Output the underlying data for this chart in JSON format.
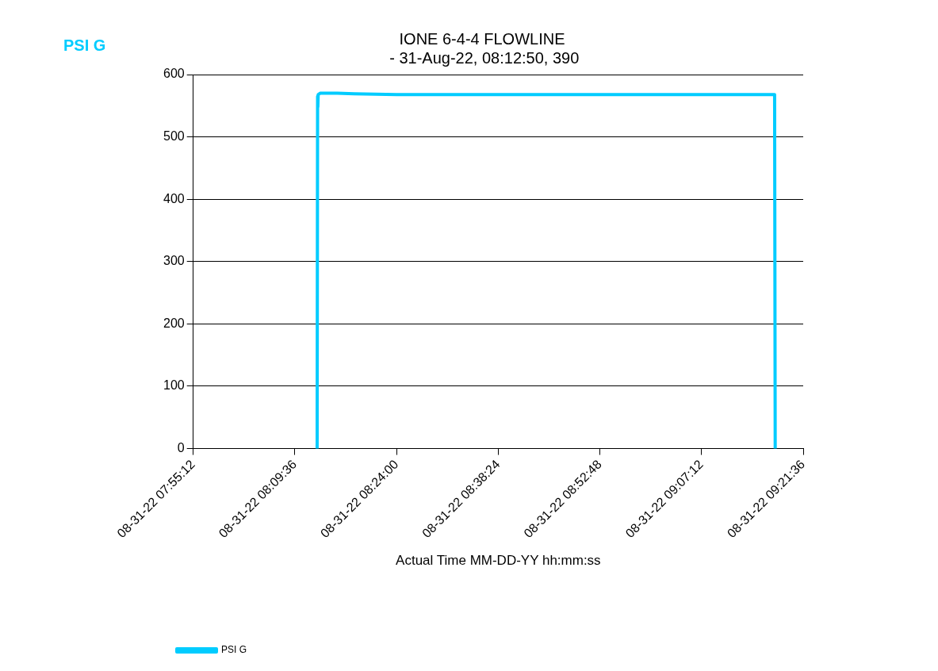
{
  "chart_data": {
    "type": "line",
    "title": "IONE 6-4-4 FLOWLINE\n - 31-Aug-22, 08:12:50, 390",
    "xlabel": "Actual Time MM-DD-YY hh:mm:ss",
    "ylabel": "PSI G",
    "xlim": [
      "--08-31T07:55:12",
      "--08-31T09:21:36"
    ],
    "xticks": [
      {
        "value": "--08-31T07:55:12",
        "label": "08-31-22 07:55:12"
      },
      {
        "value": "--08-31T08:09:36",
        "label": "08-31-22 08:09:36"
      },
      {
        "value": "--08-31T08:24:00",
        "label": "08-31-22 08:24:00"
      },
      {
        "value": "--08-31T08:38:24",
        "label": "08-31-22 08:38:24"
      },
      {
        "value": "--08-31T08:52:48",
        "label": "08-31-22 08:52:48"
      },
      {
        "value": "--08-31T09:07:12",
        "label": "08-31-22 09:07:12"
      },
      {
        "value": "--08-31T09:21:36",
        "label": "08-31-22 09:21:36"
      }
    ],
    "ylim": [
      0,
      600
    ],
    "yticks": [
      0,
      100,
      200,
      300,
      400,
      500,
      600
    ],
    "grid": "y",
    "legend": "bottom left",
    "marker": "none",
    "line_style": "solid",
    "series": [
      {
        "name": "PSI G",
        "color": "#00ccff",
        "x": [
          "--08-31T08:12:45",
          "--08-31T08:12:49",
          "--08-31T08:12:51",
          "--08-31T08:12:54",
          "--08-31T08:13:12",
          "--08-31T08:15:36",
          "--08-31T08:18:00",
          "--08-31T08:24:00",
          "--08-31T08:36:00",
          "--08-31T08:48:00",
          "--08-31T09:00:00",
          "--08-31T09:12:00",
          "--08-31T09:17:33",
          "--08-31T09:17:38"
        ],
        "values": [
          0,
          565,
          548,
          568,
          570,
          570,
          569,
          568,
          568,
          568,
          568,
          568,
          568,
          0
        ]
      }
    ]
  }
}
